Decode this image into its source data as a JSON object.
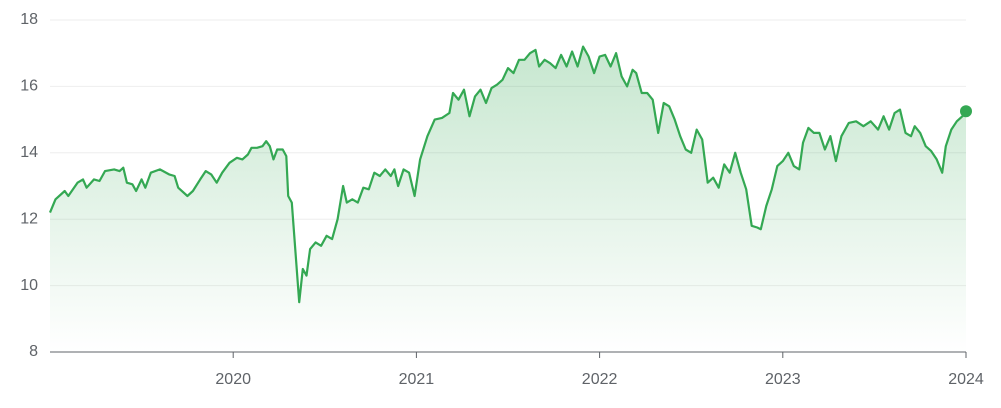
{
  "chart_data": {
    "type": "line",
    "color": "#34a853",
    "grid": true,
    "xlim": [
      2019.0,
      2024.0
    ],
    "xticks": [
      2020,
      2021,
      2022,
      2023,
      2024
    ],
    "ylim": [
      8,
      18
    ],
    "yticks": [
      8,
      10,
      12,
      14,
      16,
      18
    ],
    "x": [
      2019.0,
      2019.03,
      2019.08,
      2019.1,
      2019.15,
      2019.18,
      2019.2,
      2019.24,
      2019.27,
      2019.3,
      2019.35,
      2019.38,
      2019.4,
      2019.42,
      2019.45,
      2019.47,
      2019.5,
      2019.52,
      2019.55,
      2019.6,
      2019.65,
      2019.68,
      2019.7,
      2019.75,
      2019.78,
      2019.82,
      2019.85,
      2019.88,
      2019.91,
      2019.94,
      2019.98,
      2020.02,
      2020.05,
      2020.08,
      2020.1,
      2020.13,
      2020.16,
      2020.18,
      2020.2,
      2020.22,
      2020.24,
      2020.27,
      2020.29,
      2020.3,
      2020.32,
      2020.36,
      2020.38,
      2020.4,
      2020.42,
      2020.45,
      2020.48,
      2020.51,
      2020.54,
      2020.57,
      2020.6,
      2020.62,
      2020.65,
      2020.68,
      2020.71,
      2020.74,
      2020.77,
      2020.8,
      2020.83,
      2020.86,
      2020.88,
      2020.9,
      2020.93,
      2020.96,
      2020.99,
      2021.02,
      2021.06,
      2021.1,
      2021.14,
      2021.18,
      2021.2,
      2021.23,
      2021.26,
      2021.29,
      2021.32,
      2021.35,
      2021.38,
      2021.41,
      2021.44,
      2021.47,
      2021.5,
      2021.53,
      2021.56,
      2021.59,
      2021.62,
      2021.65,
      2021.67,
      2021.7,
      2021.73,
      2021.76,
      2021.79,
      2021.82,
      2021.85,
      2021.88,
      2021.91,
      2021.94,
      2021.97,
      2022.0,
      2022.03,
      2022.06,
      2022.09,
      2022.12,
      2022.15,
      2022.18,
      2022.2,
      2022.23,
      2022.26,
      2022.29,
      2022.32,
      2022.35,
      2022.38,
      2022.41,
      2022.44,
      2022.47,
      2022.5,
      2022.53,
      2022.56,
      2022.59,
      2022.62,
      2022.65,
      2022.68,
      2022.71,
      2022.74,
      2022.77,
      2022.8,
      2022.83,
      2022.86,
      2022.88,
      2022.91,
      2022.94,
      2022.97,
      2023.0,
      2023.03,
      2023.06,
      2023.09,
      2023.11,
      2023.14,
      2023.17,
      2023.2,
      2023.23,
      2023.26,
      2023.29,
      2023.32,
      2023.36,
      2023.4,
      2023.44,
      2023.48,
      2023.52,
      2023.55,
      2023.58,
      2023.61,
      2023.64,
      2023.67,
      2023.7,
      2023.72,
      2023.75,
      2023.78,
      2023.81,
      2023.84,
      2023.87,
      2023.89,
      2023.92,
      2023.95,
      2023.98,
      2024.0
    ],
    "values": [
      12.2,
      12.6,
      12.85,
      12.7,
      13.1,
      13.2,
      12.95,
      13.2,
      13.15,
      13.45,
      13.5,
      13.45,
      13.55,
      13.1,
      13.05,
      12.85,
      13.2,
      12.95,
      13.4,
      13.5,
      13.35,
      13.3,
      12.95,
      12.7,
      12.85,
      13.2,
      13.45,
      13.35,
      13.1,
      13.4,
      13.7,
      13.85,
      13.8,
      13.95,
      14.15,
      14.15,
      14.2,
      14.35,
      14.2,
      13.8,
      14.1,
      14.1,
      13.9,
      12.7,
      12.5,
      9.5,
      10.5,
      10.3,
      11.1,
      11.3,
      11.2,
      11.5,
      11.4,
      12.0,
      13.0,
      12.5,
      12.6,
      12.5,
      12.95,
      12.9,
      13.4,
      13.3,
      13.5,
      13.3,
      13.5,
      13.0,
      13.5,
      13.4,
      12.7,
      13.8,
      14.5,
      15.0,
      15.05,
      15.2,
      15.8,
      15.6,
      15.9,
      15.1,
      15.7,
      15.9,
      15.5,
      15.95,
      16.05,
      16.2,
      16.55,
      16.4,
      16.8,
      16.8,
      17.0,
      17.1,
      16.6,
      16.8,
      16.7,
      16.55,
      16.95,
      16.6,
      17.05,
      16.6,
      17.2,
      16.9,
      16.4,
      16.9,
      16.95,
      16.6,
      17.0,
      16.3,
      16.0,
      16.5,
      16.4,
      15.8,
      15.8,
      15.6,
      14.6,
      15.5,
      15.4,
      15.0,
      14.5,
      14.1,
      14.0,
      14.7,
      14.4,
      13.1,
      13.25,
      12.95,
      13.65,
      13.4,
      14.0,
      13.4,
      12.9,
      11.8,
      11.75,
      11.7,
      12.4,
      12.9,
      13.6,
      13.75,
      14.0,
      13.6,
      13.5,
      14.3,
      14.75,
      14.6,
      14.6,
      14.1,
      14.5,
      13.75,
      14.5,
      14.9,
      14.95,
      14.8,
      14.95,
      14.7,
      15.1,
      14.7,
      15.2,
      15.3,
      14.6,
      14.5,
      14.8,
      14.6,
      14.2,
      14.05,
      13.8,
      13.4,
      14.2,
      14.7,
      14.95,
      15.1,
      15.25
    ]
  }
}
